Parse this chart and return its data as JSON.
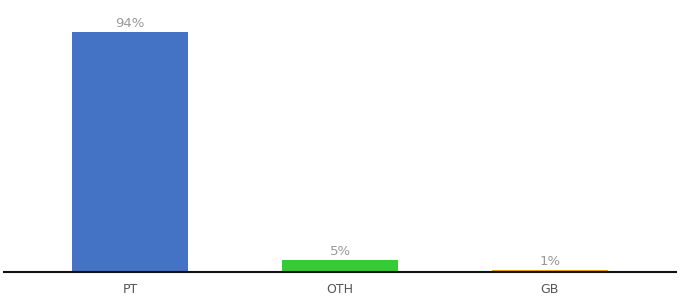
{
  "categories": [
    "PT",
    "OTH",
    "GB"
  ],
  "values": [
    94,
    5,
    1
  ],
  "bar_colors": [
    "#4472c4",
    "#33cc33",
    "#f0a500"
  ],
  "value_labels": [
    "94%",
    "5%",
    "1%"
  ],
  "background_color": "#ffffff",
  "ylim": [
    0,
    105
  ],
  "bar_width": 0.55,
  "label_fontsize": 9.5,
  "tick_fontsize": 9,
  "label_color": "#999999",
  "tick_color": "#555555",
  "spine_color": "#111111"
}
